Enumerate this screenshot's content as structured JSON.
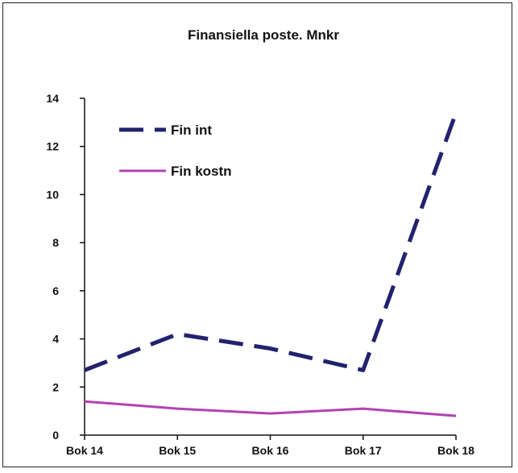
{
  "chart_data": {
    "type": "line",
    "title": "Finansiella poste. Mnkr",
    "xlabel": "",
    "ylabel": "",
    "categories": [
      "Bok 14",
      "Bok 15",
      "Bok 16",
      "Bok 17",
      "Bok 18"
    ],
    "ylim": [
      0,
      14
    ],
    "yticks": [
      0,
      2,
      4,
      6,
      8,
      10,
      12,
      14
    ],
    "grid": false,
    "legend_position": "top-left",
    "series": [
      {
        "name": "Fin int",
        "values": [
          2.7,
          4.2,
          3.6,
          2.7,
          13.4
        ],
        "color": "#22226e",
        "style": "dashed"
      },
      {
        "name": "Fin kostn",
        "values": [
          1.4,
          1.1,
          0.9,
          1.1,
          0.8
        ],
        "color": "#b341b3",
        "style": "solid"
      }
    ]
  }
}
